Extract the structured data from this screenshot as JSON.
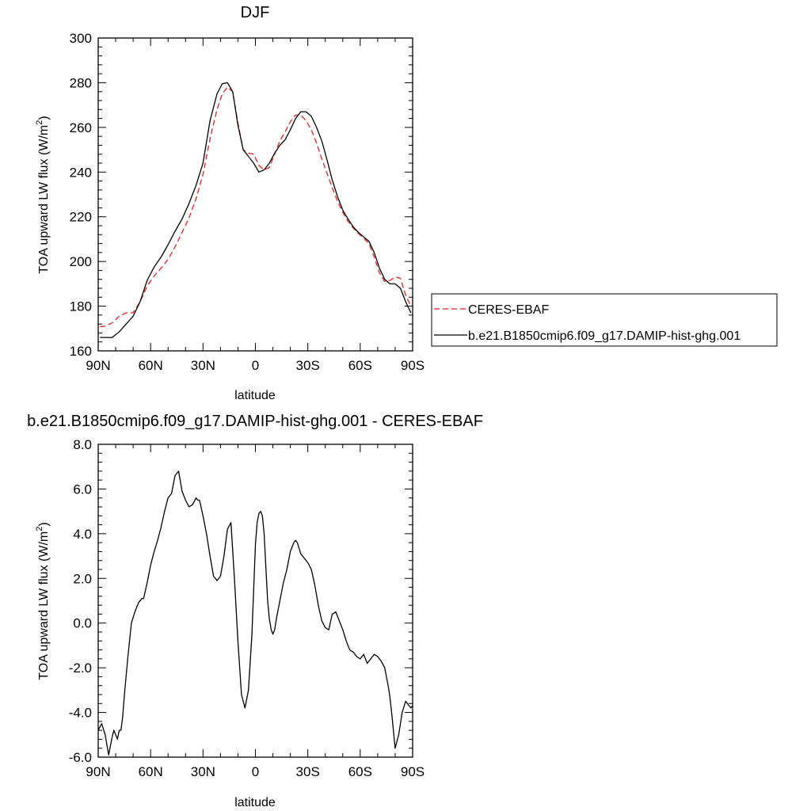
{
  "chart_data": [
    {
      "type": "line",
      "title": "DJF",
      "xlabel": "latitude",
      "ylabel_text": "TOA upward LW flux (W/m",
      "ylabel_sup": "2",
      "ylabel_close": ")",
      "xlim": [
        90,
        -90
      ],
      "ylim": [
        160,
        300
      ],
      "x_ticks": [
        90,
        60,
        30,
        0,
        -30,
        -60,
        -90
      ],
      "x_tick_labels": [
        "90N",
        "60N",
        "30N",
        "0",
        "30S",
        "60S",
        "90S"
      ],
      "y_ticks": [
        160,
        180,
        200,
        220,
        240,
        260,
        280,
        300
      ],
      "y_tick_labels": [
        "160",
        "180",
        "200",
        "220",
        "240",
        "260",
        "280",
        "300"
      ],
      "legend": "right",
      "series": [
        {
          "name": "CERES-EBAF",
          "color": "#e8201e",
          "dash": "dashed",
          "x": [
            89,
            86,
            82,
            78,
            74,
            70,
            66,
            62,
            58,
            54,
            50,
            46,
            42,
            38,
            34,
            30,
            26,
            22,
            19,
            16,
            13,
            10,
            7,
            4,
            1,
            -2,
            -5,
            -8,
            -11,
            -14,
            -17,
            -20,
            -23,
            -26,
            -29,
            -32,
            -35,
            -38,
            -41,
            -44,
            -47,
            -50,
            -53,
            -56,
            -59,
            -62,
            -65,
            -68,
            -71,
            -74,
            -77,
            -80,
            -83,
            -86,
            -89
          ],
          "y": [
            170.8,
            171,
            172.5,
            175.5,
            177,
            177,
            182,
            189,
            193.5,
            197,
            201,
            206.5,
            213,
            219.5,
            228,
            239,
            255,
            268,
            275,
            278,
            276,
            262,
            250,
            248.5,
            248,
            243,
            241,
            242,
            248,
            254,
            258,
            262.5,
            265.5,
            265.5,
            263,
            259,
            253,
            246,
            239.5,
            233,
            227,
            222,
            218,
            215,
            212.5,
            210.5,
            208,
            202,
            195,
            191,
            191.5,
            193,
            192.5,
            185,
            180
          ]
        },
        {
          "name": "b.e21.B1850cmip6.f09_g17.DAMIP-hist-ghg.001",
          "color": "#000000",
          "dash": "solid",
          "x": [
            89,
            86,
            82,
            78,
            74,
            70,
            66,
            62,
            58,
            54,
            50,
            46,
            42,
            38,
            34,
            30,
            26,
            22,
            19,
            16,
            13,
            10,
            7,
            4,
            1,
            -2,
            -5,
            -8,
            -11,
            -14,
            -17,
            -20,
            -23,
            -26,
            -29,
            -32,
            -35,
            -38,
            -41,
            -44,
            -47,
            -50,
            -53,
            -56,
            -59,
            -62,
            -65,
            -68,
            -71,
            -74,
            -77,
            -80,
            -83,
            -86,
            -89
          ],
          "y": [
            166,
            166,
            166,
            168.5,
            172,
            175.5,
            182,
            191.5,
            197.5,
            202,
            207.5,
            213.5,
            219,
            226,
            234,
            244,
            263,
            275,
            279.5,
            280,
            276,
            261,
            250,
            247,
            244,
            240,
            241,
            244,
            248.5,
            252,
            254.5,
            259,
            264,
            267,
            267,
            265,
            260,
            254,
            245.5,
            236.5,
            229,
            223,
            219,
            215.5,
            213,
            211,
            209,
            204,
            197,
            192,
            190,
            190,
            188,
            182,
            177
          ]
        }
      ]
    },
    {
      "type": "line",
      "title": "b.e21.B1850cmip6.f09_g17.DAMIP-hist-ghg.001 - CERES-EBAF",
      "xlabel": "latitude",
      "ylabel_text": "TOA upward LW flux (W/m",
      "ylabel_sup": "2",
      "ylabel_close": ")",
      "xlim": [
        90,
        -90
      ],
      "ylim": [
        -6,
        8
      ],
      "x_ticks": [
        90,
        60,
        30,
        0,
        -30,
        -60,
        -90
      ],
      "x_tick_labels": [
        "90N",
        "60N",
        "30N",
        "0",
        "30S",
        "60S",
        "90S"
      ],
      "y_ticks": [
        -6,
        -4,
        -2,
        0,
        2,
        4,
        6,
        8
      ],
      "y_tick_labels": [
        "-6.0",
        "-4.0",
        "-2.0",
        "0.0",
        "2.0",
        "4.0",
        "6.0",
        "8.0"
      ],
      "series": [
        {
          "color": "#000000",
          "dash": "solid",
          "x": [
            90,
            88,
            86,
            84,
            82,
            81,
            80,
            79,
            78,
            77,
            76,
            75,
            73,
            71,
            69,
            67,
            65,
            64,
            62,
            60,
            58,
            56,
            54,
            52,
            50,
            48,
            46,
            44,
            42,
            40,
            38,
            36,
            34,
            33,
            32,
            30,
            28,
            26,
            24,
            22,
            20,
            18,
            16,
            14,
            12,
            10,
            8,
            6,
            4,
            2,
            1,
            0,
            -1,
            -2,
            -3,
            -4,
            -5,
            -6,
            -7,
            -8,
            -9,
            -10,
            -11,
            -12,
            -13,
            -14,
            -15,
            -16,
            -17,
            -18,
            -19,
            -20,
            -21,
            -22,
            -23,
            -24,
            -26,
            -28,
            -30,
            -32,
            -34,
            -36,
            -38,
            -40,
            -42,
            -44,
            -46,
            -48,
            -50,
            -52,
            -54,
            -56,
            -58,
            -60,
            -62,
            -64,
            -66,
            -68,
            -70,
            -72,
            -74,
            -75,
            -76,
            -77,
            -78,
            -79,
            -80,
            -82,
            -84,
            -86,
            -87,
            -88,
            -89,
            -90
          ],
          "y": [
            -4.8,
            -4.5,
            -5,
            -5.9,
            -5.1,
            -4.8,
            -5,
            -5.2,
            -4.8,
            -4.8,
            -4.2,
            -3.2,
            -1.5,
            0,
            0.5,
            0.9,
            1.1,
            1.1,
            1.8,
            2.6,
            3.2,
            3.7,
            4.3,
            5.0,
            5.6,
            5.8,
            6.6,
            6.8,
            5.9,
            5.5,
            5.2,
            5.3,
            5.6,
            5.5,
            5.5,
            4.8,
            4.0,
            3.0,
            2.1,
            1.9,
            2.1,
            3.0,
            4.2,
            4.5,
            2.0,
            -0.8,
            -3.2,
            -3.8,
            -3.0,
            -0.5,
            1.5,
            3.5,
            4.5,
            4.9,
            5.0,
            4.8,
            4.0,
            2.5,
            1.0,
            0.2,
            -0.3,
            -0.5,
            -0.3,
            0.2,
            0.6,
            1.0,
            1.4,
            1.8,
            2.1,
            2.4,
            2.8,
            3.2,
            3.4,
            3.6,
            3.7,
            3.6,
            3.1,
            2.9,
            2.7,
            2.4,
            1.7,
            0.8,
            0.1,
            -0.2,
            -0.3,
            0.4,
            0.5,
            0.1,
            -0.3,
            -0.8,
            -1.2,
            -1.3,
            -1.5,
            -1.6,
            -1.4,
            -1.8,
            -1.6,
            -1.4,
            -1.5,
            -1.7,
            -2.0,
            -2.4,
            -2.8,
            -3.3,
            -4.0,
            -4.8,
            -5.6,
            -5.0,
            -4.0,
            -3.5,
            -3.6,
            -3.7,
            -3.8,
            -3.7
          ]
        }
      ]
    }
  ]
}
